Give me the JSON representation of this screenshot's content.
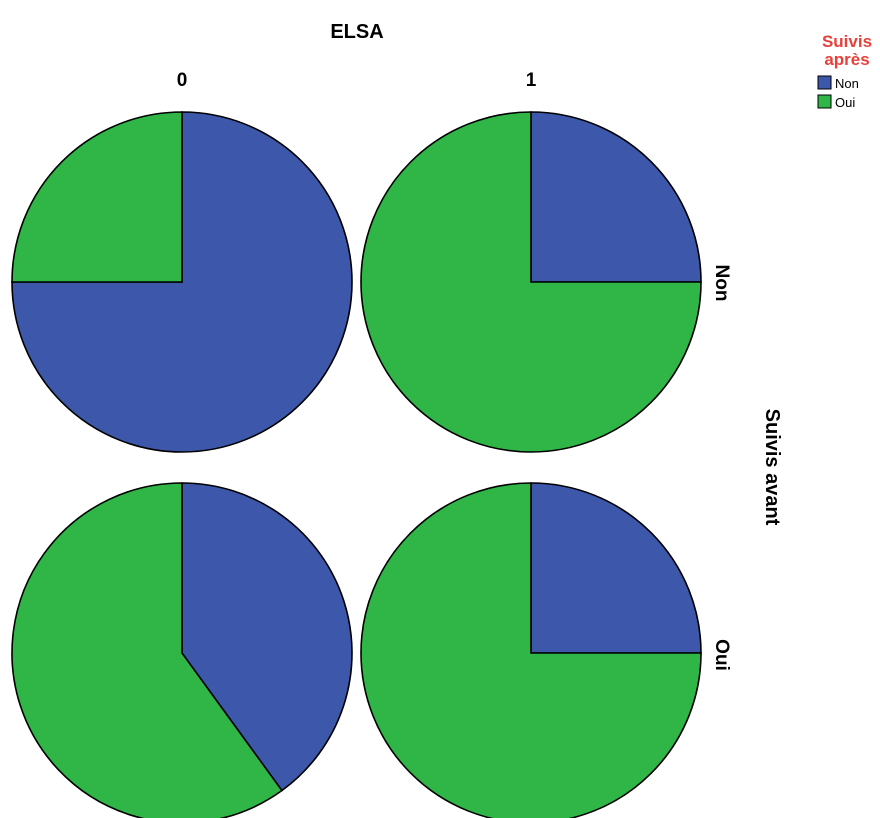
{
  "chart_data": {
    "type": "pie",
    "column_title": "ELSA",
    "column_labels": [
      "0",
      "1"
    ],
    "row_title": "Suivis avant",
    "row_labels": [
      "Non",
      "Oui"
    ],
    "legend": {
      "title_line1": "Suivis",
      "title_line2": "après",
      "items": [
        {
          "label": "Non",
          "color": "#3d57ab"
        },
        {
          "label": "Oui",
          "color": "#2fb647"
        }
      ]
    },
    "panels": [
      {
        "row": "Non",
        "column": "0",
        "slices": [
          {
            "label": "Non",
            "value": 75
          },
          {
            "label": "Oui",
            "value": 25
          }
        ]
      },
      {
        "row": "Non",
        "column": "1",
        "slices": [
          {
            "label": "Non",
            "value": 25
          },
          {
            "label": "Oui",
            "value": 75
          }
        ]
      },
      {
        "row": "Oui",
        "column": "0",
        "slices": [
          {
            "label": "Non",
            "value": 40
          },
          {
            "label": "Oui",
            "value": 60
          }
        ]
      },
      {
        "row": "Oui",
        "column": "1",
        "slices": [
          {
            "label": "Non",
            "value": 25
          },
          {
            "label": "Oui",
            "value": 75
          }
        ]
      }
    ],
    "colors": {
      "Non": "#3d57ab",
      "Oui": "#2fb647",
      "legend_title": "#e8413c"
    }
  }
}
